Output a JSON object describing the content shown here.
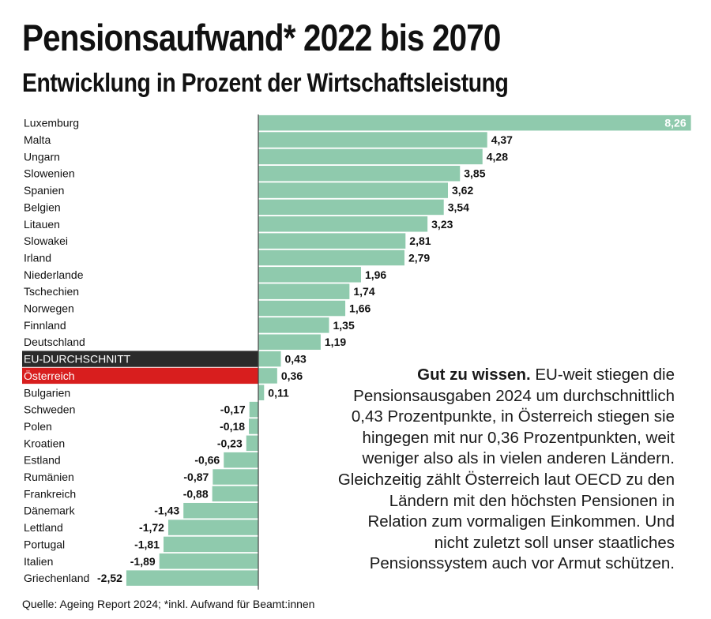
{
  "header": {
    "title": "Pensionsaufwand* 2022 bis 2070",
    "subtitle": "Entwicklung in Prozent der Wirtschaftsleistung"
  },
  "note": {
    "lead": "Gut zu wissen.",
    "body": " EU-weit stiegen die Pensionsausgaben 2024 um durchschnittlich 0,43 Prozentpunkte, in Österreich stiegen sie hingegen mit nur 0,36 Prozentpunkten, weit weniger also als in vielen anderen Ländern. Gleichzeitig zählt Österreich laut OECD zu den Ländern mit den höchsten Pensionen in Relation zum vormaligen Einkommen. Und nicht zuletzt soll unser staatliches Pensionssystem auch vor Armut schützen."
  },
  "source": "Quelle: Ageing Report 2024; *inkl. Aufwand für Beamt:innen",
  "colors": {
    "bar": "#8fcaad",
    "eu_band": "#2b2b2b",
    "austria_band": "#d81e1e",
    "axis": "#444444"
  },
  "chart_data": {
    "type": "bar",
    "orientation": "horizontal",
    "title": "Pensionsaufwand* 2022 bis 2070",
    "subtitle": "Entwicklung in Prozent der Wirtschaftsleistung",
    "xlim": [
      -2.52,
      8.26
    ],
    "categories": [
      "Luxemburg",
      "Malta",
      "Ungarn",
      "Slowenien",
      "Spanien",
      "Belgien",
      "Litauen",
      "Slowakei",
      "Irland",
      "Niederlande",
      "Tschechien",
      "Norwegen",
      "Finnland",
      "Deutschland",
      "EU-DURCHSCHNITT",
      "Österreich",
      "Bulgarien",
      "Schweden",
      "Polen",
      "Kroatien",
      "Estland",
      "Rumänien",
      "Frankreich",
      "Dänemark",
      "Lettland",
      "Portugal",
      "Italien",
      "Griechenland"
    ],
    "values": [
      8.26,
      4.37,
      4.28,
      3.85,
      3.62,
      3.54,
      3.23,
      2.81,
      2.79,
      1.96,
      1.74,
      1.66,
      1.35,
      1.19,
      0.43,
      0.36,
      0.11,
      -0.17,
      -0.18,
      -0.23,
      -0.66,
      -0.87,
      -0.88,
      -1.43,
      -1.72,
      -1.81,
      -1.89,
      -2.52
    ],
    "labels": [
      "8,26",
      "4,37",
      "4,28",
      "3,85",
      "3,62",
      "3,54",
      "3,23",
      "2,81",
      "2,79",
      "1,96",
      "1,74",
      "1,66",
      "1,35",
      "1,19",
      "0,43",
      "0,36",
      "0,11",
      "-0,17",
      "-0,18",
      "-0,23",
      "-0,66",
      "-0,87",
      "-0,88",
      "-1,43",
      "-1,72",
      "-1,81",
      "-1,89",
      "-2,52"
    ],
    "highlight": {
      "EU-DURCHSCHNITT": "eu",
      "Österreich": "austria"
    }
  }
}
